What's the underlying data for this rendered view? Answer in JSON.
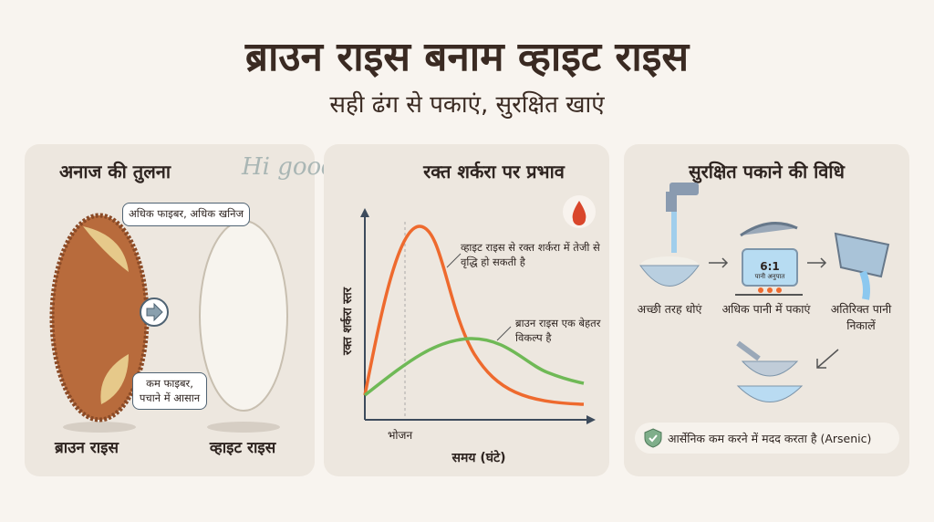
{
  "header": {
    "title": "ब्राउन राइस बनाम व्हाइट राइस",
    "subtitle": "सही ढंग से पकाएं, सुरक्षित खाएं"
  },
  "watermark": "Hi good health",
  "grain_panel": {
    "title": "अनाज की तुलना",
    "brown_bubble": "अधिक फाइबर, अधिक खनिज",
    "white_bubble": "कम फाइबर, पचाने में आसान",
    "brown_label": "ब्राउन राइस",
    "white_label": "व्हाइट राइस",
    "colors": {
      "brown": "#b86b3c",
      "white": "#f4f1ea"
    }
  },
  "sugar_panel": {
    "title": "रक्त शर्करा पर प्रभाव",
    "icon": "blood-drop-icon",
    "ylabel": "रक्त शर्करा स्तर",
    "xlabel": "समय (घंटे)",
    "meal_marker": "भोजन",
    "white_note": "व्हाइट राइस से रक्त शर्करा में तेजी से वृद्धि हो सकती है",
    "brown_note": "ब्राउन राइस एक बेहतर विकल्प है",
    "colors": {
      "white_curve": "#ee6a2e",
      "brown_curve": "#6fb956"
    }
  },
  "cook_panel": {
    "title": "सुरक्षित पकाने की विधि",
    "steps": [
      {
        "label": "अच्छी तरह धोएं",
        "icon": "tap-bowl-icon"
      },
      {
        "label": "अधिक पानी में पकाएं",
        "icon": "pot-icon"
      },
      {
        "label": "अतिरिक्त पानी निकालें",
        "icon": "pour-pot-icon"
      }
    ],
    "ratio": "6:1",
    "ratio_label": "पानी अनुपात",
    "strainer_icon": "strainer-icon",
    "footer": "आर्सेनिक कम करने में मदद करता है (Arsenic)"
  }
}
